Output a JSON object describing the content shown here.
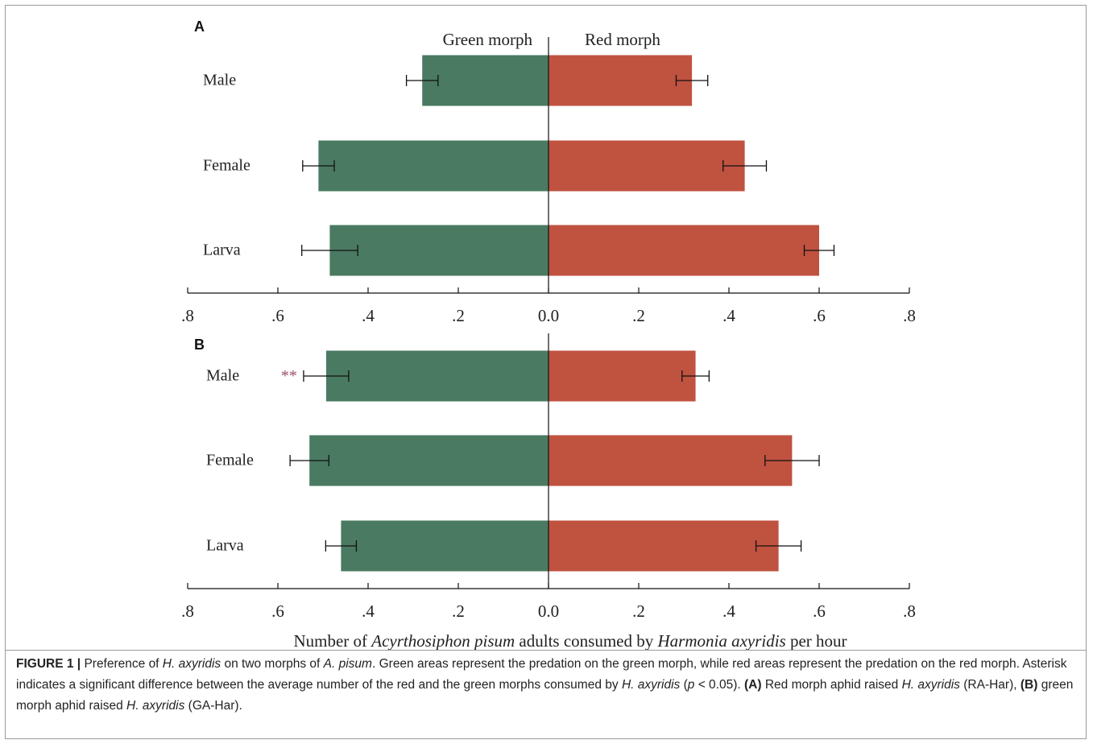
{
  "chart_data": [
    {
      "type": "bar",
      "panel_label": "A",
      "orientation": "horizontal-diverging",
      "categories": [
        "Male",
        "Female",
        "Larva"
      ],
      "series": [
        {
          "name": "Green morph",
          "color": "#4a7a62",
          "values": [
            0.28,
            0.51,
            0.485
          ],
          "error": [
            0.035,
            0.035,
            0.062
          ]
        },
        {
          "name": "Red morph",
          "color": "#c05240",
          "values": [
            0.318,
            0.435,
            0.6
          ],
          "error": [
            0.035,
            0.048,
            0.033
          ]
        }
      ],
      "xticks": [
        ".8",
        ".6",
        ".4",
        ".2",
        "0.0",
        ".2",
        ".4",
        ".6",
        ".8"
      ],
      "xlim": [
        -0.8,
        0.8
      ],
      "annotations": []
    },
    {
      "type": "bar",
      "panel_label": "B",
      "orientation": "horizontal-diverging",
      "categories": [
        "Male",
        "Female",
        "Larva"
      ],
      "series": [
        {
          "name": "Green morph",
          "color": "#4a7a62",
          "values": [
            0.493,
            0.53,
            0.46
          ],
          "error": [
            0.05,
            0.043,
            0.034
          ]
        },
        {
          "name": "Red morph",
          "color": "#c05240",
          "values": [
            0.326,
            0.54,
            0.51
          ],
          "error": [
            0.03,
            0.06,
            0.05
          ]
        }
      ],
      "xticks": [
        ".8",
        ".6",
        ".4",
        ".2",
        "0.0",
        ".2",
        ".4",
        ".6",
        ".8"
      ],
      "xlim": [
        -0.8,
        0.8
      ],
      "annotations": [
        {
          "category": "Male",
          "text": "**",
          "color": "#9b4a6a"
        }
      ]
    }
  ],
  "xlabel_parts": [
    {
      "text": "Number of ",
      "italic": false
    },
    {
      "text": "Acyrthosiphon pisum",
      "italic": true
    },
    {
      "text": " adults consumed by ",
      "italic": false
    },
    {
      "text": "Harmonia axyridis",
      "italic": true
    },
    {
      "text": " per hour",
      "italic": false
    }
  ],
  "caption_parts": [
    {
      "text": "FIGURE 1 | ",
      "style": "bold"
    },
    {
      "text": "Preference of ",
      "style": "normal"
    },
    {
      "text": "H. axyridis",
      "style": "italic"
    },
    {
      "text": " on two morphs of ",
      "style": "normal"
    },
    {
      "text": "A. pisum",
      "style": "italic"
    },
    {
      "text": ". Green areas represent the predation on the green morph, while red areas represent the predation on the red morph. Asterisk indicates a significant difference between the average number of the red and the green morphs consumed by ",
      "style": "normal"
    },
    {
      "text": "H. axyridis",
      "style": "italic"
    },
    {
      "text": " (",
      "style": "normal"
    },
    {
      "text": "p",
      "style": "italic"
    },
    {
      "text": " < 0.05). ",
      "style": "normal"
    },
    {
      "text": "(A)",
      "style": "bold"
    },
    {
      "text": " Red morph aphid raised ",
      "style": "normal"
    },
    {
      "text": "H. axyridis",
      "style": "italic"
    },
    {
      "text": " (RA-Har), ",
      "style": "normal"
    },
    {
      "text": "(B)",
      "style": "bold"
    },
    {
      "text": " green morph aphid raised ",
      "style": "normal"
    },
    {
      "text": "H. axyridis",
      "style": "italic"
    },
    {
      "text": " (GA-Har).",
      "style": "normal"
    }
  ]
}
